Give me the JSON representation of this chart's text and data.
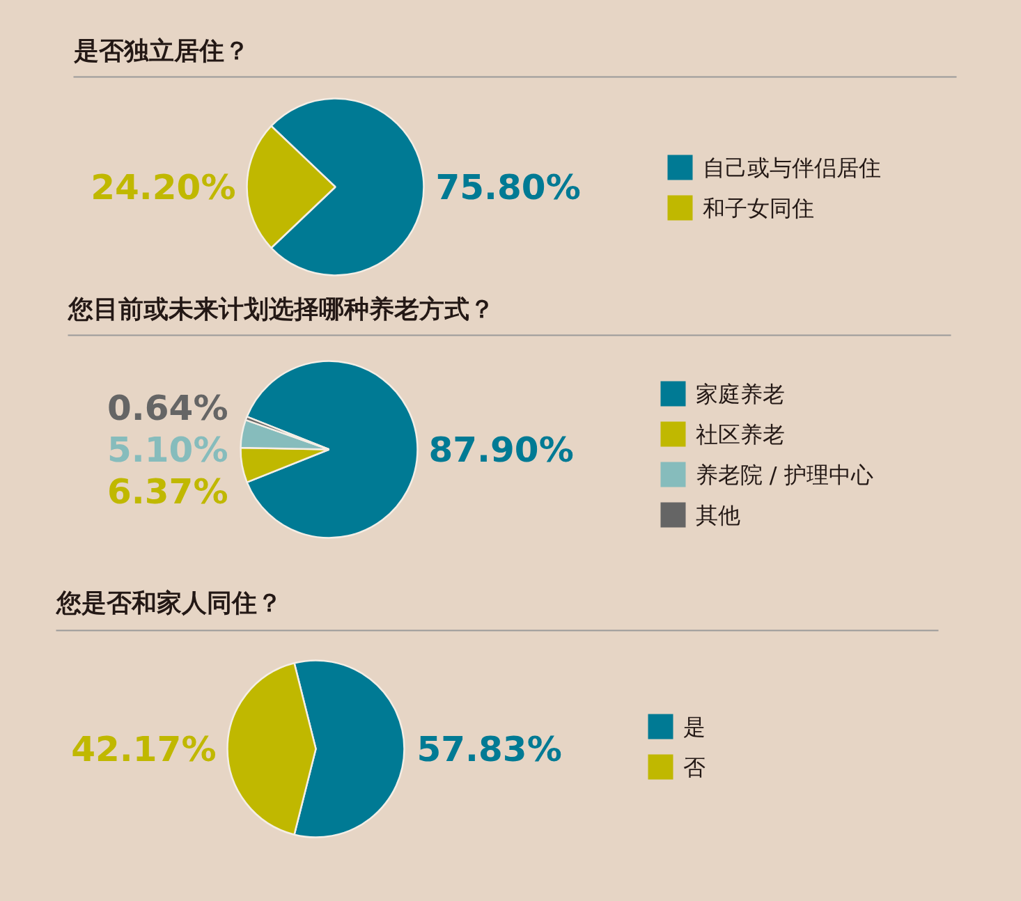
{
  "chart_data": [
    {
      "type": "pie",
      "title": "是否独立居住？",
      "categories": [
        "自己或与伴侣居住",
        "和子女同住"
      ],
      "values": [
        75.8,
        24.2
      ],
      "colors": [
        "#007a94",
        "#c0b800"
      ],
      "value_labels": [
        "75.80%",
        "24.20%"
      ],
      "legend": "right"
    },
    {
      "type": "pie",
      "title": "您目前或未来计划选择哪种养老方式？",
      "categories": [
        "家庭养老",
        "社区养老",
        "养老院 / 护理中心",
        "其他"
      ],
      "values": [
        87.9,
        6.37,
        5.1,
        0.64
      ],
      "colors": [
        "#007a94",
        "#c0b800",
        "#86bcbc",
        "#656565"
      ],
      "value_labels": [
        "87.90%",
        "6.37%",
        "5.10%",
        "0.64%"
      ],
      "legend": "right"
    },
    {
      "type": "pie",
      "title": "您是否和家人同住？",
      "categories": [
        "是",
        "否"
      ],
      "values": [
        57.83,
        42.17
      ],
      "colors": [
        "#007a94",
        "#c0b800"
      ],
      "value_labels": [
        "57.83%",
        "42.17%"
      ],
      "legend": "right"
    }
  ]
}
